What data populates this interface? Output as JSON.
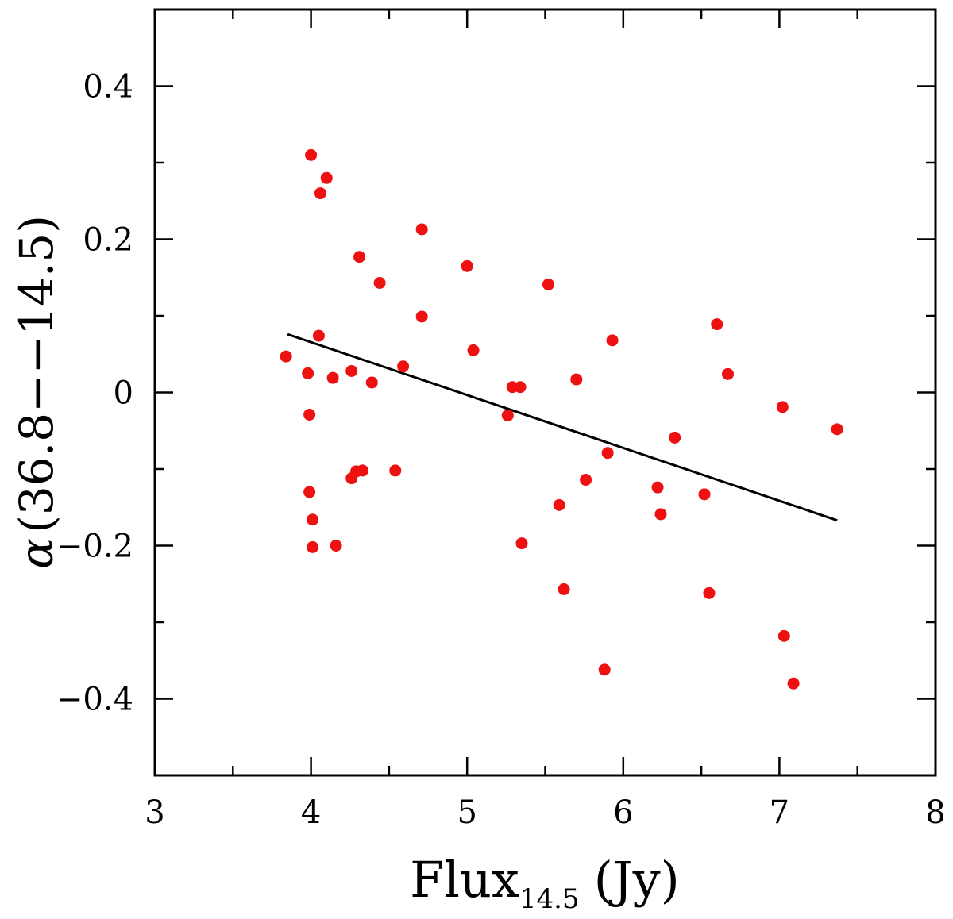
{
  "chart_data": {
    "type": "scatter",
    "xlabel": {
      "main": "Flux",
      "sub": "14.5",
      "unit": "(Jy)"
    },
    "ylabel": {
      "symbol": "α",
      "text": "(36.8−−14.5)"
    },
    "xlim": [
      3,
      8
    ],
    "ylim": [
      -0.5,
      0.5
    ],
    "x_ticks": [
      3,
      4,
      5,
      6,
      7,
      8
    ],
    "x_tick_labels": [
      "3",
      "4",
      "5",
      "6",
      "7",
      "8"
    ],
    "x_minor_step": 0.5,
    "y_ticks": [
      -0.4,
      -0.2,
      0,
      0.2,
      0.4
    ],
    "y_tick_labels": [
      "−0.4",
      "−0.2",
      "0",
      "0.2",
      "0.4"
    ],
    "y_minor_step": 0.1,
    "grid": false,
    "legend": "none",
    "colors": {
      "points": "#ee1111",
      "fit": "#000000",
      "axes": "#000000"
    },
    "series": [
      {
        "kind": "points",
        "points": [
          [
            3.84,
            0.047
          ],
          [
            3.98,
            0.025
          ],
          [
            3.99,
            -0.029
          ],
          [
            3.99,
            -0.13
          ],
          [
            4.0,
            0.31
          ],
          [
            4.01,
            -0.166
          ],
          [
            4.01,
            -0.202
          ],
          [
            4.05,
            0.074
          ],
          [
            4.06,
            0.26
          ],
          [
            4.1,
            0.28
          ],
          [
            4.14,
            0.019
          ],
          [
            4.16,
            -0.2
          ],
          [
            4.26,
            0.028
          ],
          [
            4.26,
            -0.112
          ],
          [
            4.29,
            -0.103
          ],
          [
            4.31,
            0.177
          ],
          [
            4.33,
            -0.102
          ],
          [
            4.39,
            0.013
          ],
          [
            4.44,
            0.143
          ],
          [
            4.54,
            -0.102
          ],
          [
            4.59,
            0.034
          ],
          [
            4.71,
            0.213
          ],
          [
            4.71,
            0.099
          ],
          [
            5.0,
            0.165
          ],
          [
            5.04,
            0.055
          ],
          [
            5.26,
            -0.03
          ],
          [
            5.29,
            0.007
          ],
          [
            5.34,
            0.007
          ],
          [
            5.35,
            -0.197
          ],
          [
            5.52,
            0.141
          ],
          [
            5.59,
            -0.147
          ],
          [
            5.62,
            -0.257
          ],
          [
            5.7,
            0.017
          ],
          [
            5.76,
            -0.114
          ],
          [
            5.88,
            -0.362
          ],
          [
            5.9,
            -0.079
          ],
          [
            5.93,
            0.068
          ],
          [
            6.22,
            -0.124
          ],
          [
            6.24,
            -0.159
          ],
          [
            6.33,
            -0.059
          ],
          [
            6.52,
            -0.133
          ],
          [
            6.55,
            -0.262
          ],
          [
            6.6,
            0.089
          ],
          [
            6.67,
            0.024
          ],
          [
            7.02,
            -0.019
          ],
          [
            7.03,
            -0.318
          ],
          [
            7.09,
            -0.38
          ],
          [
            7.37,
            -0.048
          ]
        ]
      },
      {
        "kind": "fit-line",
        "points": [
          [
            3.85,
            0.076
          ],
          [
            7.37,
            -0.167
          ]
        ]
      }
    ]
  }
}
